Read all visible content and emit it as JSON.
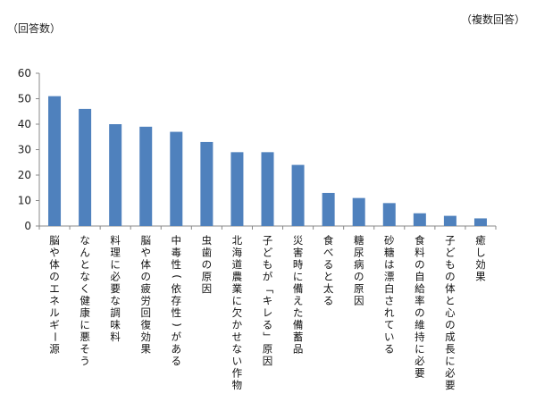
{
  "chart_data": {
    "type": "bar",
    "ylabel": "（回答数）",
    "note": "（複数回答）",
    "ylim": [
      0,
      60
    ],
    "yticks": [
      0,
      10,
      20,
      30,
      40,
      50,
      60
    ],
    "grid": false,
    "legend": "none",
    "bar_color": "#4f81bd",
    "categories": [
      "脳や体のエネルギー源",
      "なんとなく健康に悪そう",
      "料理に必要な調味料",
      "脳や体の疲労回復効果",
      "中毒性(依存性)がある",
      "虫歯の原因",
      "北海道農業に欠かせない作物",
      "子どもが「キレる」原因",
      "災害時に備えた備蓄品",
      "食べると太る",
      "糖尿病の原因",
      "砂糖は漂白されている",
      "食料の自給率の維持に必要",
      "子どもの体と心の成長に必要",
      "癒し効果"
    ],
    "values": [
      51,
      46,
      40,
      39,
      37,
      33,
      29,
      29,
      24,
      13,
      11,
      9,
      5,
      4,
      3
    ]
  }
}
